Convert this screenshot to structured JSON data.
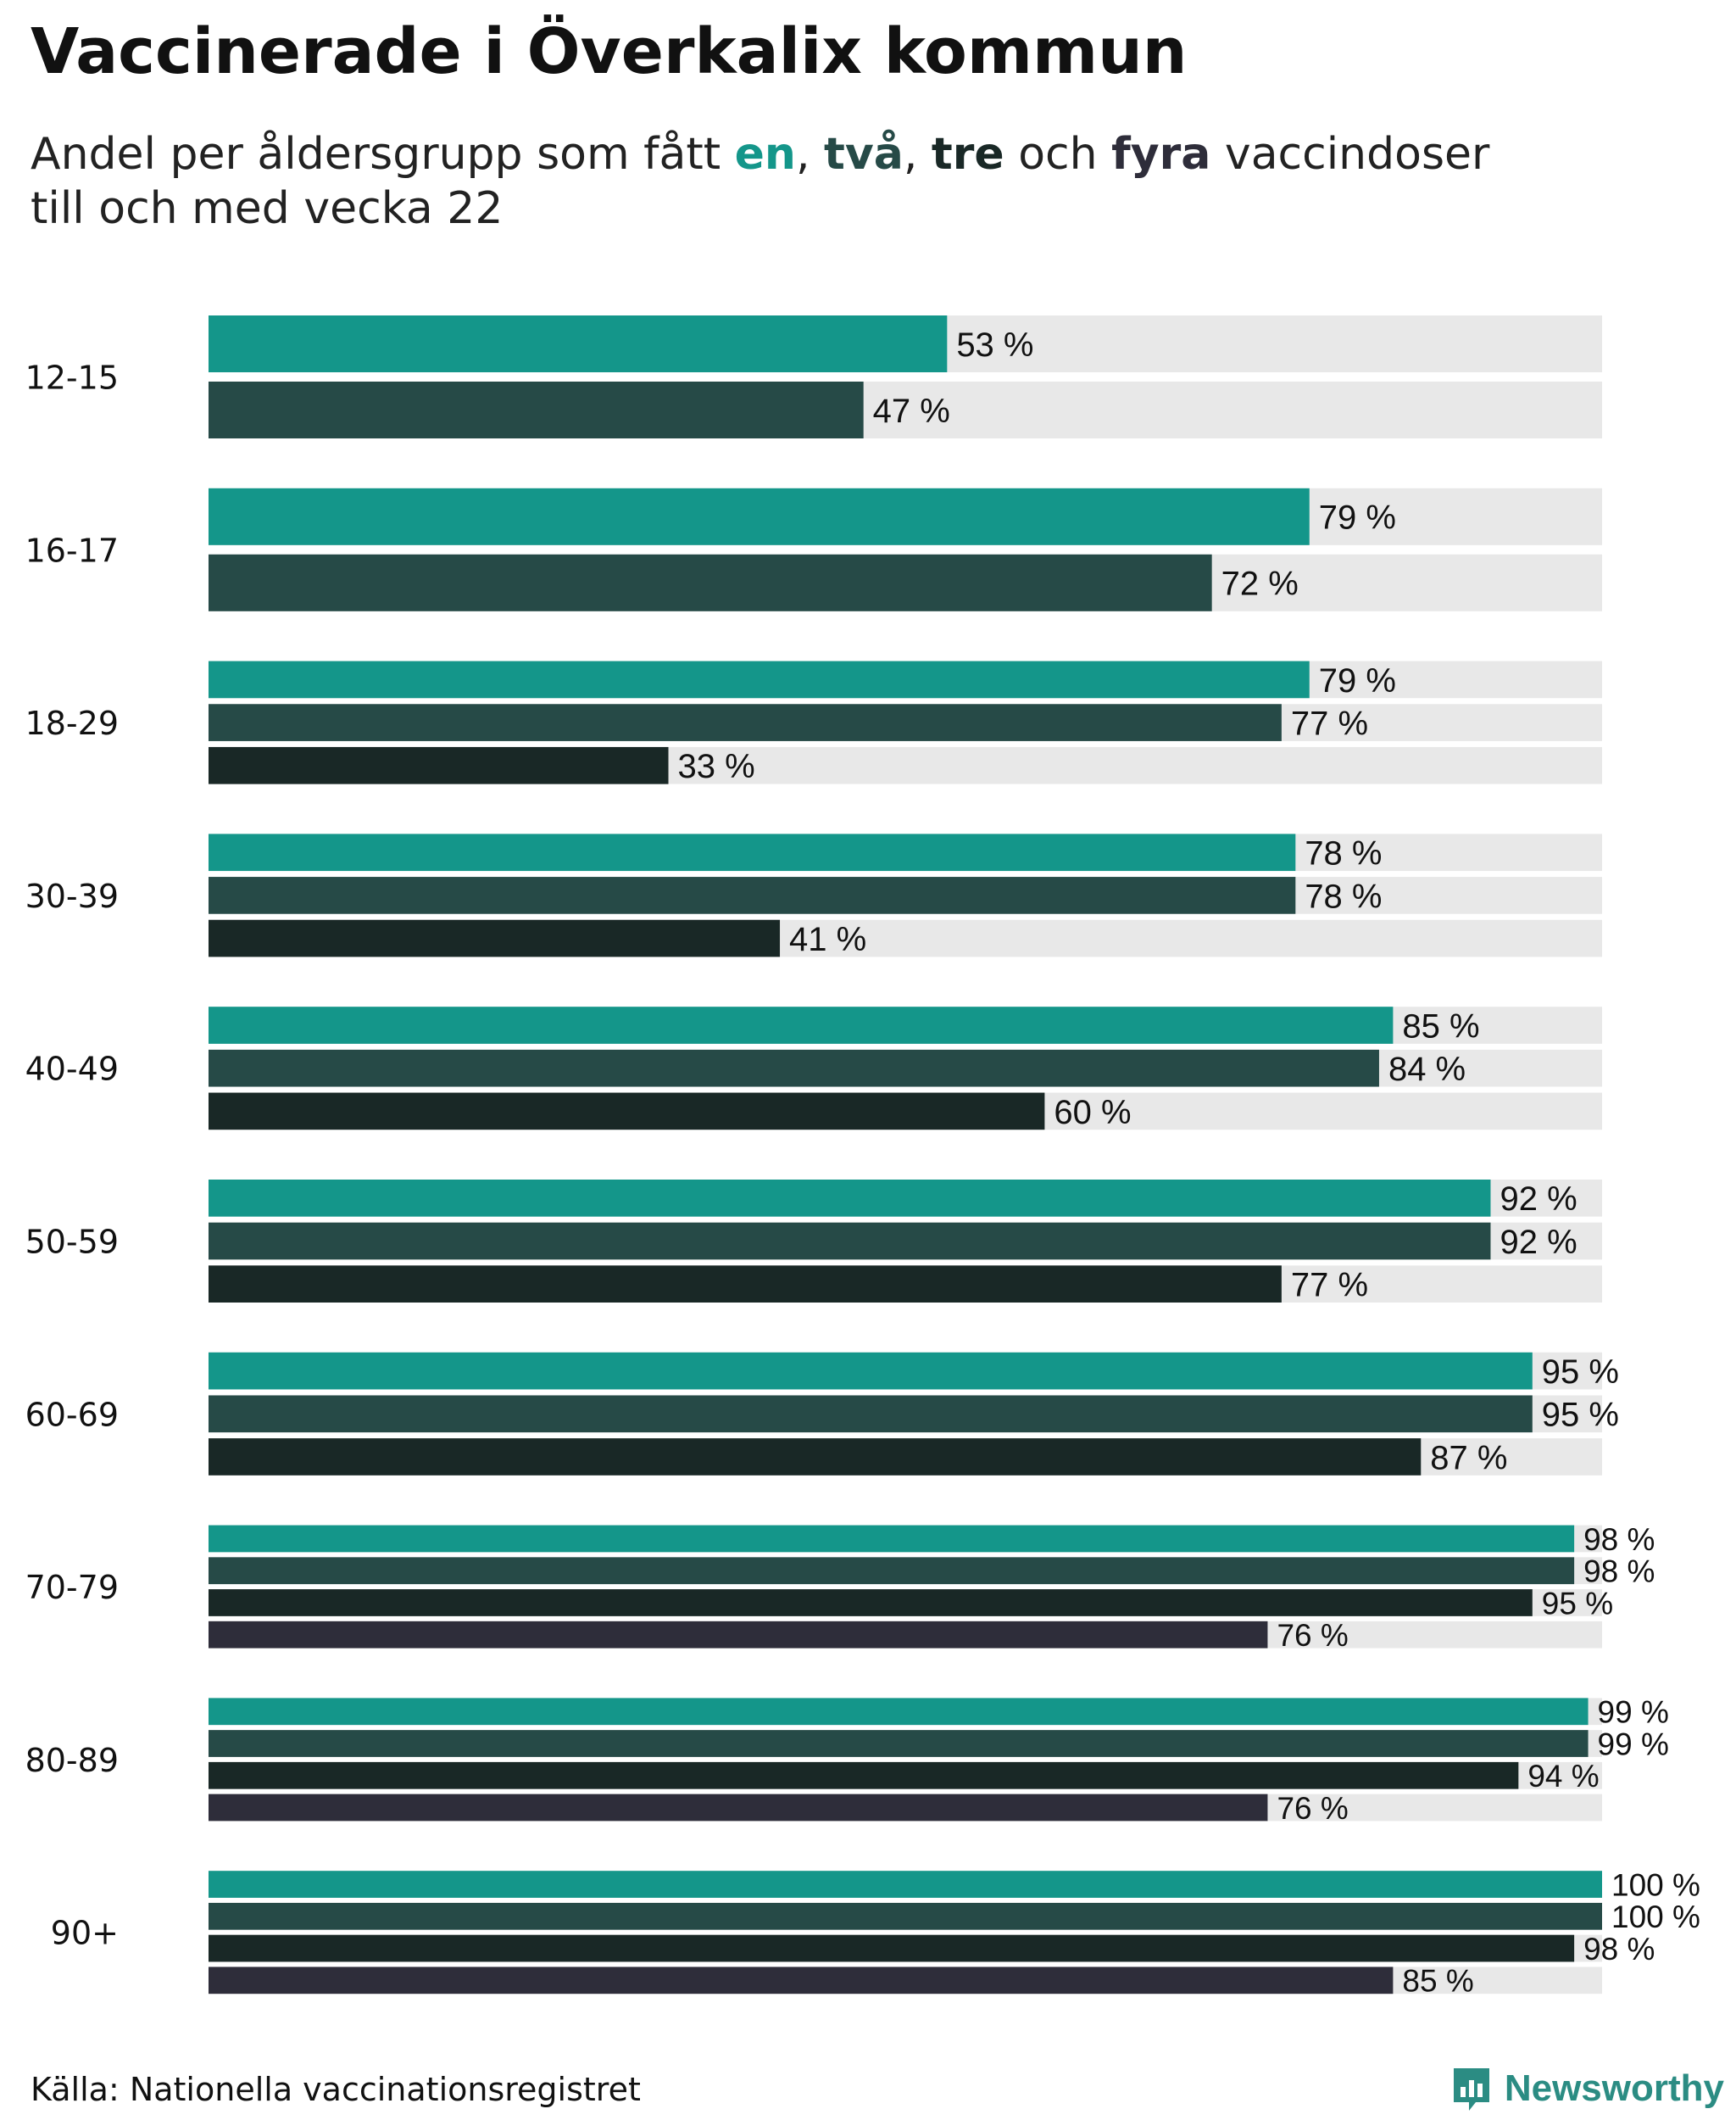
{
  "title": "Vaccinerade i Överkalix kommun",
  "subtitle": {
    "pre": "Andel per åldersgrupp som fått ",
    "dose1": "en",
    "sep1": ", ",
    "dose2": "två",
    "sep2": ", ",
    "dose3": "tre",
    "mid": " och ",
    "dose4": "fyra",
    "post": " vaccindoser",
    "line2": "till och med vecka 22"
  },
  "colors": {
    "dose1": "#14968a",
    "dose2": "#264a47",
    "dose3": "#192826",
    "dose4": "#2e2d3a",
    "track": "#e8e8e8"
  },
  "chart_data": {
    "type": "bar",
    "orientation": "horizontal",
    "xlim": [
      0,
      100
    ],
    "value_suffix": " %",
    "categories": [
      "12-15",
      "16-17",
      "18-29",
      "30-39",
      "40-49",
      "50-59",
      "60-69",
      "70-79",
      "80-89",
      "90+"
    ],
    "series": [
      {
        "values": [
          53,
          79,
          79,
          78,
          85,
          92,
          95,
          98,
          99,
          100
        ]
      },
      {
        "values": [
          47,
          72,
          77,
          78,
          84,
          92,
          95,
          98,
          99,
          100
        ]
      },
      {
        "values": [
          null,
          null,
          33,
          41,
          60,
          77,
          87,
          95,
          94,
          98
        ]
      },
      {
        "values": [
          null,
          null,
          null,
          null,
          null,
          null,
          null,
          76,
          76,
          85
        ]
      }
    ]
  },
  "footer": {
    "source": "Källa: Nationella vaccinationsregistret",
    "brand": "Newsworthy"
  }
}
